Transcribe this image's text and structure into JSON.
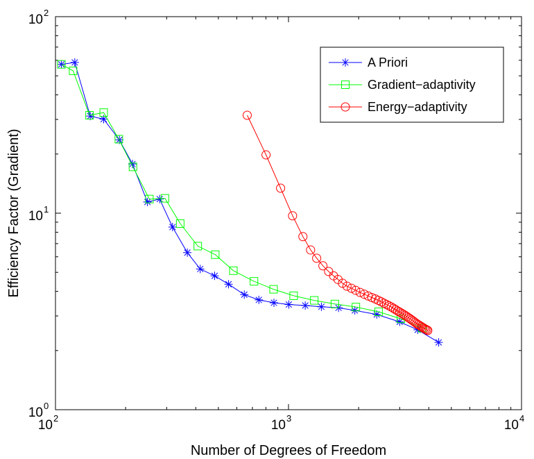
{
  "chart_data": {
    "type": "line",
    "xscale": "log",
    "yscale": "log",
    "xlim": [
      100,
      10000
    ],
    "ylim": [
      1,
      100
    ],
    "xlabel": "Number of Degrees of Freedom",
    "ylabel": "Efficiency Factor (Gradient)",
    "x_ticks": [
      {
        "value": 100,
        "base": "10",
        "exp": "2"
      },
      {
        "value": 1000,
        "base": "10",
        "exp": "3"
      },
      {
        "value": 10000,
        "base": "10",
        "exp": "4"
      }
    ],
    "y_ticks": [
      {
        "value": 1,
        "base": "10",
        "exp": "0"
      },
      {
        "value": 10,
        "base": "10",
        "exp": "1"
      },
      {
        "value": 100,
        "base": "10",
        "exp": "2"
      }
    ],
    "grid": false,
    "legend_position": "top-right",
    "series": [
      {
        "name": "A Priori",
        "color": "#0000ff",
        "marker": "asterisk",
        "x": [
          106,
          121,
          141,
          161,
          188,
          214,
          248,
          280,
          318,
          368,
          418,
          482,
          553,
          646,
          746,
          866,
          1003,
          1180,
          1384,
          1640,
          1926,
          2392,
          3000,
          3583,
          4411
        ],
        "y": [
          57.2,
          58.5,
          31.2,
          30.1,
          23.6,
          17.8,
          11.4,
          11.8,
          8.5,
          6.3,
          5.2,
          4.8,
          4.35,
          3.85,
          3.62,
          3.5,
          3.43,
          3.39,
          3.34,
          3.3,
          3.2,
          3.05,
          2.8,
          2.55,
          2.2
        ]
      },
      {
        "name": "Gradient−adaptivity",
        "color": "#00ff00",
        "marker": "square",
        "x": [
          106,
          119,
          140,
          161,
          187,
          215,
          253,
          295,
          343,
          408,
          485,
          580,
          711,
          863,
          1052,
          1290,
          1581,
          1946,
          2435,
          3036,
          3745
        ],
        "y": [
          57.2,
          53.0,
          31.5,
          32.5,
          23.8,
          17.2,
          11.8,
          11.9,
          8.85,
          6.8,
          6.15,
          5.1,
          4.5,
          4.1,
          3.8,
          3.6,
          3.45,
          3.33,
          3.15,
          2.9,
          2.6
        ]
      },
      {
        "name": "Energy−adaptivity",
        "color": "#ff0000",
        "marker": "circle",
        "x": [
          665,
          801,
          925,
          1041,
          1153,
          1244,
          1321,
          1405,
          1487,
          1561,
          1631,
          1705,
          1782,
          1862,
          1942,
          2029,
          2113,
          2198,
          2280,
          2358,
          2431,
          2502,
          2570,
          2636,
          2700,
          2762,
          2822,
          2881,
          2939,
          2996,
          3052,
          3108,
          3163,
          3218,
          3273,
          3328,
          3383,
          3438,
          3493,
          3548,
          3603,
          3658,
          3713,
          3768,
          3822,
          3874,
          3920,
          3961
        ],
        "y": [
          31.5,
          19.8,
          13.4,
          9.7,
          7.6,
          6.5,
          5.9,
          5.4,
          5.05,
          4.8,
          4.6,
          4.4,
          4.25,
          4.15,
          4.05,
          3.95,
          3.87,
          3.79,
          3.72,
          3.66,
          3.6,
          3.54,
          3.48,
          3.43,
          3.38,
          3.33,
          3.28,
          3.23,
          3.18,
          3.14,
          3.1,
          3.06,
          3.02,
          2.98,
          2.94,
          2.9,
          2.86,
          2.82,
          2.78,
          2.74,
          2.71,
          2.68,
          2.65,
          2.62,
          2.59,
          2.57,
          2.55,
          2.53
        ]
      }
    ]
  }
}
